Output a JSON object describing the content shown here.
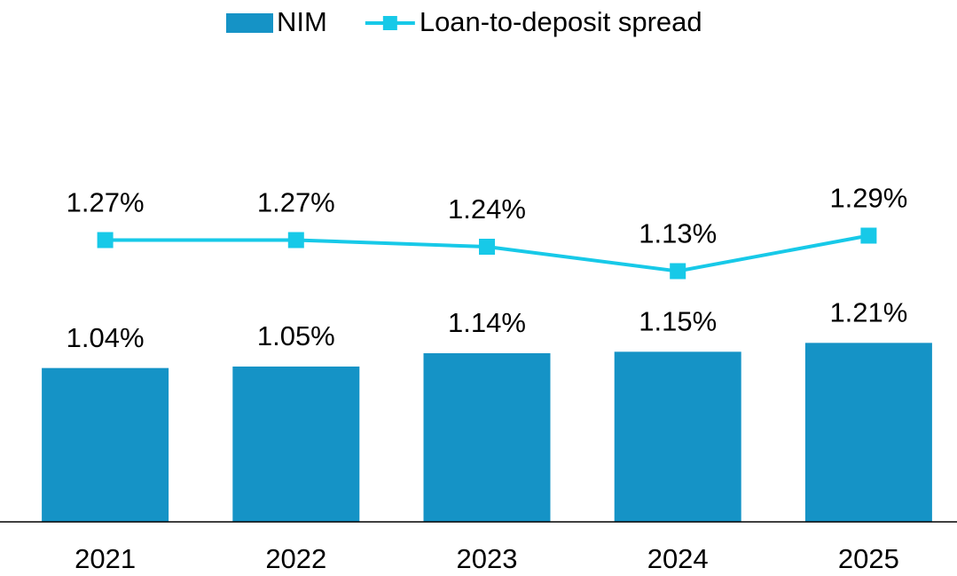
{
  "chart_data": {
    "type": "bar_line",
    "categories": [
      "2021",
      "2022",
      "2023",
      "2024",
      "2025"
    ],
    "series": [
      {
        "name": "NIM",
        "type": "bar",
        "color": "#1593c6",
        "values": [
          1.04,
          1.05,
          1.14,
          1.15,
          1.21
        ],
        "value_labels": [
          "1.04%",
          "1.05%",
          "1.14%",
          "1.15%",
          "1.21%"
        ]
      },
      {
        "name": "Loan-to-deposit spread",
        "type": "line",
        "axis": "y2",
        "color": "#17c9e8",
        "values": [
          1.27,
          1.27,
          1.24,
          1.13,
          1.29
        ],
        "value_labels": [
          "1.27%",
          "1.27%",
          "1.24%",
          "1.13%",
          "1.29%"
        ]
      }
    ],
    "ylim": [
      0,
      3
    ],
    "y2lim": [
      0,
      2
    ],
    "legend": "top"
  }
}
